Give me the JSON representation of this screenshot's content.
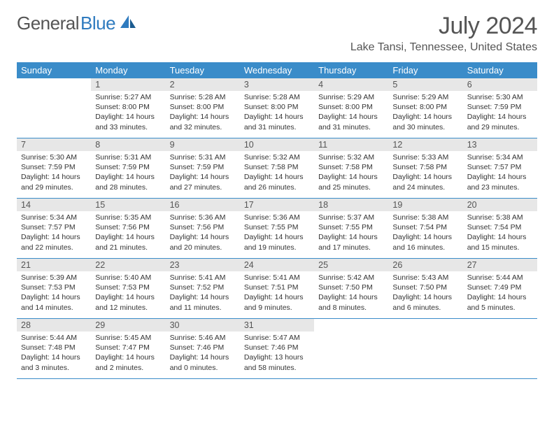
{
  "logo": {
    "gray": "General",
    "blue": "Blue"
  },
  "title": "July 2024",
  "location": "Lake Tansi, Tennessee, United States",
  "colors": {
    "header_bg": "#3a8cc9",
    "header_text": "#ffffff",
    "daynum_bg": "#e7e7e7",
    "text": "#333333",
    "rule": "#3a8cc9"
  },
  "weekdays": [
    "Sunday",
    "Monday",
    "Tuesday",
    "Wednesday",
    "Thursday",
    "Friday",
    "Saturday"
  ],
  "start_offset": 1,
  "days": [
    {
      "n": 1,
      "sr": "5:27 AM",
      "ss": "8:00 PM",
      "dl": "14 hours and 33 minutes."
    },
    {
      "n": 2,
      "sr": "5:28 AM",
      "ss": "8:00 PM",
      "dl": "14 hours and 32 minutes."
    },
    {
      "n": 3,
      "sr": "5:28 AM",
      "ss": "8:00 PM",
      "dl": "14 hours and 31 minutes."
    },
    {
      "n": 4,
      "sr": "5:29 AM",
      "ss": "8:00 PM",
      "dl": "14 hours and 31 minutes."
    },
    {
      "n": 5,
      "sr": "5:29 AM",
      "ss": "8:00 PM",
      "dl": "14 hours and 30 minutes."
    },
    {
      "n": 6,
      "sr": "5:30 AM",
      "ss": "7:59 PM",
      "dl": "14 hours and 29 minutes."
    },
    {
      "n": 7,
      "sr": "5:30 AM",
      "ss": "7:59 PM",
      "dl": "14 hours and 29 minutes."
    },
    {
      "n": 8,
      "sr": "5:31 AM",
      "ss": "7:59 PM",
      "dl": "14 hours and 28 minutes."
    },
    {
      "n": 9,
      "sr": "5:31 AM",
      "ss": "7:59 PM",
      "dl": "14 hours and 27 minutes."
    },
    {
      "n": 10,
      "sr": "5:32 AM",
      "ss": "7:58 PM",
      "dl": "14 hours and 26 minutes."
    },
    {
      "n": 11,
      "sr": "5:32 AM",
      "ss": "7:58 PM",
      "dl": "14 hours and 25 minutes."
    },
    {
      "n": 12,
      "sr": "5:33 AM",
      "ss": "7:58 PM",
      "dl": "14 hours and 24 minutes."
    },
    {
      "n": 13,
      "sr": "5:34 AM",
      "ss": "7:57 PM",
      "dl": "14 hours and 23 minutes."
    },
    {
      "n": 14,
      "sr": "5:34 AM",
      "ss": "7:57 PM",
      "dl": "14 hours and 22 minutes."
    },
    {
      "n": 15,
      "sr": "5:35 AM",
      "ss": "7:56 PM",
      "dl": "14 hours and 21 minutes."
    },
    {
      "n": 16,
      "sr": "5:36 AM",
      "ss": "7:56 PM",
      "dl": "14 hours and 20 minutes."
    },
    {
      "n": 17,
      "sr": "5:36 AM",
      "ss": "7:55 PM",
      "dl": "14 hours and 19 minutes."
    },
    {
      "n": 18,
      "sr": "5:37 AM",
      "ss": "7:55 PM",
      "dl": "14 hours and 17 minutes."
    },
    {
      "n": 19,
      "sr": "5:38 AM",
      "ss": "7:54 PM",
      "dl": "14 hours and 16 minutes."
    },
    {
      "n": 20,
      "sr": "5:38 AM",
      "ss": "7:54 PM",
      "dl": "14 hours and 15 minutes."
    },
    {
      "n": 21,
      "sr": "5:39 AM",
      "ss": "7:53 PM",
      "dl": "14 hours and 14 minutes."
    },
    {
      "n": 22,
      "sr": "5:40 AM",
      "ss": "7:53 PM",
      "dl": "14 hours and 12 minutes."
    },
    {
      "n": 23,
      "sr": "5:41 AM",
      "ss": "7:52 PM",
      "dl": "14 hours and 11 minutes."
    },
    {
      "n": 24,
      "sr": "5:41 AM",
      "ss": "7:51 PM",
      "dl": "14 hours and 9 minutes."
    },
    {
      "n": 25,
      "sr": "5:42 AM",
      "ss": "7:50 PM",
      "dl": "14 hours and 8 minutes."
    },
    {
      "n": 26,
      "sr": "5:43 AM",
      "ss": "7:50 PM",
      "dl": "14 hours and 6 minutes."
    },
    {
      "n": 27,
      "sr": "5:44 AM",
      "ss": "7:49 PM",
      "dl": "14 hours and 5 minutes."
    },
    {
      "n": 28,
      "sr": "5:44 AM",
      "ss": "7:48 PM",
      "dl": "14 hours and 3 minutes."
    },
    {
      "n": 29,
      "sr": "5:45 AM",
      "ss": "7:47 PM",
      "dl": "14 hours and 2 minutes."
    },
    {
      "n": 30,
      "sr": "5:46 AM",
      "ss": "7:46 PM",
      "dl": "14 hours and 0 minutes."
    },
    {
      "n": 31,
      "sr": "5:47 AM",
      "ss": "7:46 PM",
      "dl": "13 hours and 58 minutes."
    }
  ]
}
